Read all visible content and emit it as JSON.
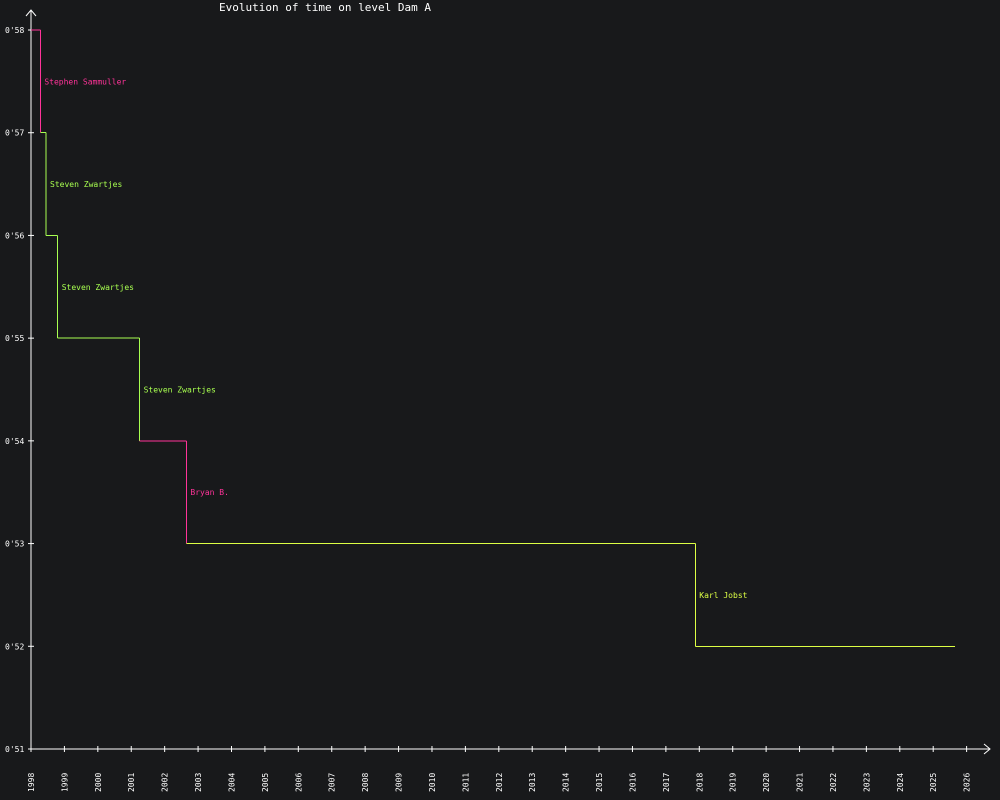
{
  "chart_data": {
    "type": "line",
    "title": "Evolution of time on level Dam A",
    "xlabel": "",
    "ylabel": "",
    "xlim": [
      1998,
      2026.7
    ],
    "ylim": [
      51,
      58.2
    ],
    "x_ticks": [
      "1998",
      "1999",
      "2000",
      "2001",
      "2002",
      "2003",
      "2004",
      "2005",
      "2006",
      "2007",
      "2008",
      "2009",
      "2010",
      "2011",
      "2012",
      "2013",
      "2014",
      "2015",
      "2016",
      "2017",
      "2018",
      "2019",
      "2020",
      "2021",
      "2022",
      "2023",
      "2024",
      "2025",
      "2026"
    ],
    "y_ticks": [
      "0'51",
      "0'52",
      "0'53",
      "0'54",
      "0'55",
      "0'56",
      "0'57",
      "0'58"
    ],
    "grid": false,
    "colors": {
      "pink": "#ff3399",
      "green": "#a8ff50",
      "yellow": "#ddff44",
      "axis": "#ffffff",
      "background": "#18191b"
    },
    "end_x": 2025.65,
    "records": [
      {
        "x": 1998.0,
        "y": 58,
        "holder": "",
        "color": "#ff3399"
      },
      {
        "x": 1998.28,
        "y": 57,
        "holder": "Stephen Sammuller",
        "color": "#ff3399"
      },
      {
        "x": 1998.45,
        "y": 56,
        "holder": "Steven Zwartjes",
        "color": "#a8ff50"
      },
      {
        "x": 1998.8,
        "y": 55,
        "holder": "Steven Zwartjes",
        "color": "#a8ff50"
      },
      {
        "x": 2001.25,
        "y": 54,
        "holder": "Steven Zwartjes",
        "color": "#a8ff50"
      },
      {
        "x": 2002.65,
        "y": 53,
        "holder": "Bryan B.",
        "color": "#ff3399"
      },
      {
        "x": 2017.88,
        "y": 52,
        "holder": "Karl Jobst",
        "color": "#ddff44"
      }
    ]
  }
}
